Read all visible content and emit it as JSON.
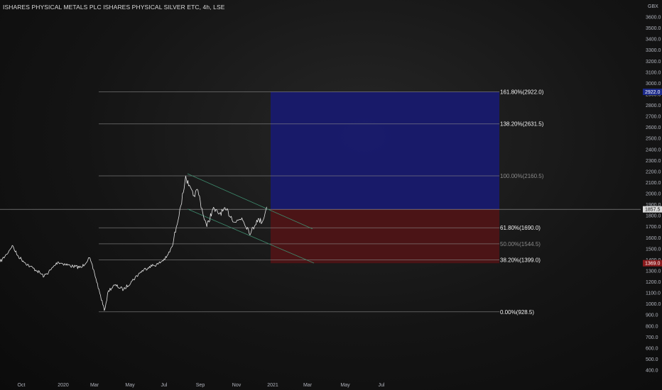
{
  "chart_title": "ISHARES PHYSICAL METALS PLC ISHARES PHYSICAL SILVER ETC, 4h, LSE",
  "currency": "GBX",
  "colors": {
    "price_line": "#e6e6e6",
    "fib_line": "#8a8a8a",
    "channel_line": "#3e8c6e",
    "target_zone": "#181a6e",
    "stop_zone": "#4e1416",
    "label_bright": "#f2f2f2",
    "label_dim": "#8a8a8a",
    "current_badge_bg": "#d9d9d9",
    "target_badge_bg": "#1c2a8a",
    "stop_badge_bg": "#8a1a1c"
  },
  "chart_data": {
    "type": "line",
    "title": "ISHARES PHYSICAL METALS PLC ISHARES PHYSICAL SILVER ETC, 4h, LSE",
    "xlabel": "",
    "ylabel": "GBX",
    "ylim": [
      347,
      3738
    ],
    "x_ticks": [
      "Oct",
      "2020",
      "Mar",
      "May",
      "Jul",
      "Sep",
      "Nov",
      "2021",
      "Mar",
      "May",
      "Jul"
    ],
    "y_ticks": [
      400.0,
      500.0,
      600.0,
      700.0,
      800.0,
      900.0,
      1000.0,
      1100.0,
      1200.0,
      1300.0,
      1400.0,
      1500.0,
      1600.0,
      1700.0,
      1800.0,
      1900.0,
      2000.0,
      2100.0,
      2200.0,
      2300.0,
      2400.0,
      2500.0,
      2600.0,
      2700.0,
      2800.0,
      2900.0,
      3000.0,
      3100.0,
      3200.0,
      3300.0,
      3400.0,
      3500.0,
      3600.0
    ],
    "series": [
      {
        "x": [
          "2019-08-01",
          "2019-08-20",
          "2019-09-05",
          "2019-09-20",
          "2019-10-05",
          "2019-10-20",
          "2019-11-05",
          "2019-11-20",
          "2019-12-05",
          "2019-12-20",
          "2020-01-05",
          "2020-01-20",
          "2020-02-05",
          "2020-02-20",
          "2020-03-01",
          "2020-03-10",
          "2020-03-18",
          "2020-03-25",
          "2020-04-05",
          "2020-04-20",
          "2020-05-05",
          "2020-05-20",
          "2020-06-05",
          "2020-06-20",
          "2020-07-05",
          "2020-07-15",
          "2020-07-22",
          "2020-07-28",
          "2020-08-03",
          "2020-08-07",
          "2020-08-12",
          "2020-08-20",
          "2020-08-28",
          "2020-09-05",
          "2020-09-12",
          "2020-09-22",
          "2020-10-01",
          "2020-10-15",
          "2020-10-30",
          "2020-11-10",
          "2020-11-25",
          "2020-12-05",
          "2020-12-15",
          "2020-12-22"
        ],
        "values": [
          1380,
          1450,
          1530,
          1440,
          1390,
          1340,
          1300,
          1250,
          1310,
          1380,
          1360,
          1340,
          1330,
          1420,
          1280,
          1100,
          940,
          1120,
          1170,
          1130,
          1210,
          1290,
          1340,
          1360,
          1420,
          1520,
          1700,
          1860,
          2010,
          2160,
          2070,
          1980,
          2030,
          1830,
          1700,
          1860,
          1820,
          1850,
          1740,
          1780,
          1640,
          1760,
          1750,
          1880
        ]
      }
    ],
    "fib_levels": [
      {
        "label": "161.80%(2922.0)",
        "value": 2922.0
      },
      {
        "label": "138.20%(2631.5)",
        "value": 2631.5
      },
      {
        "label": "100.00%(2160.5)",
        "value": 2160.5
      },
      {
        "label": "61.80%(1690.0)",
        "value": 1690.0
      },
      {
        "label": "50.00%(1544.5)",
        "value": 1544.5
      },
      {
        "label": "38.20%(1399.0)",
        "value": 1399.0
      },
      {
        "label": "0.00%(928.5)",
        "value": 928.5
      }
    ],
    "position": {
      "entry": 1857.5,
      "target": 2922.0,
      "stop": 1369.0
    },
    "price_badges": {
      "target": "2922.0",
      "current": "1857.5",
      "stop": "1369.0"
    }
  }
}
